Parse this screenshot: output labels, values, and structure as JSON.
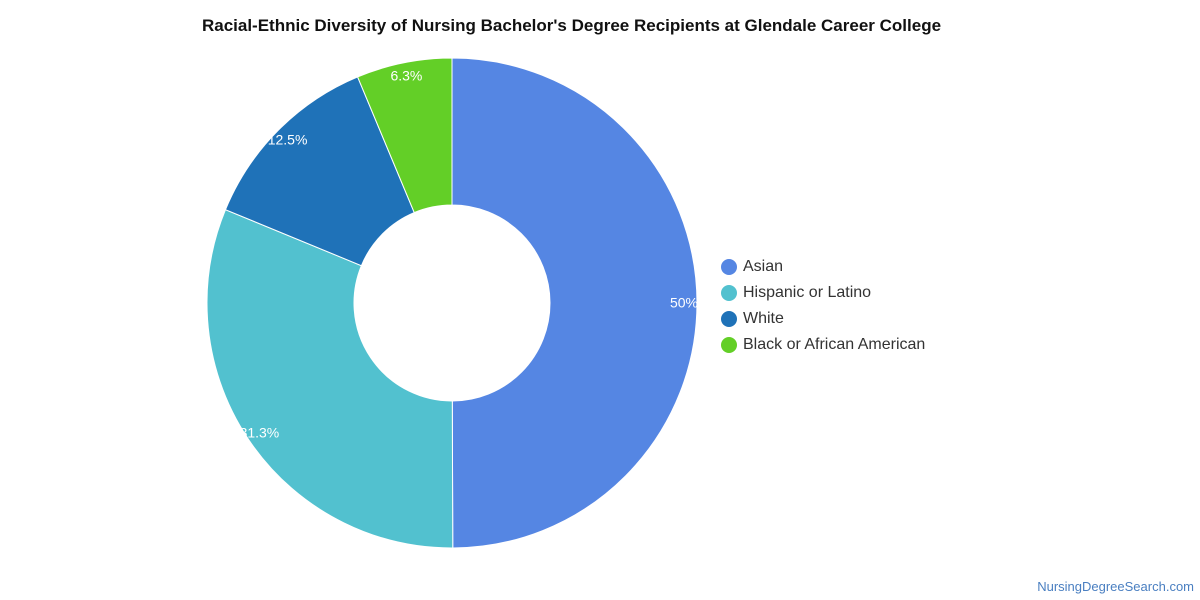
{
  "chart_data": {
    "type": "pie",
    "variant": "donut",
    "title": "Racial-Ethnic Diversity of Nursing Bachelor's Degree Recipients at Glendale Career College",
    "categories": [
      "Asian",
      "Hispanic or Latino",
      "White",
      "Black or African American"
    ],
    "values": [
      50,
      31.3,
      12.5,
      6.3
    ],
    "value_labels": [
      "50%",
      "31.3%",
      "12.5%",
      "6.3%"
    ],
    "colors": [
      "#5586e3",
      "#52c1cf",
      "#1f72b8",
      "#63cf27"
    ],
    "legend_position": "right"
  },
  "source": "NursingDegreeSearch.com"
}
